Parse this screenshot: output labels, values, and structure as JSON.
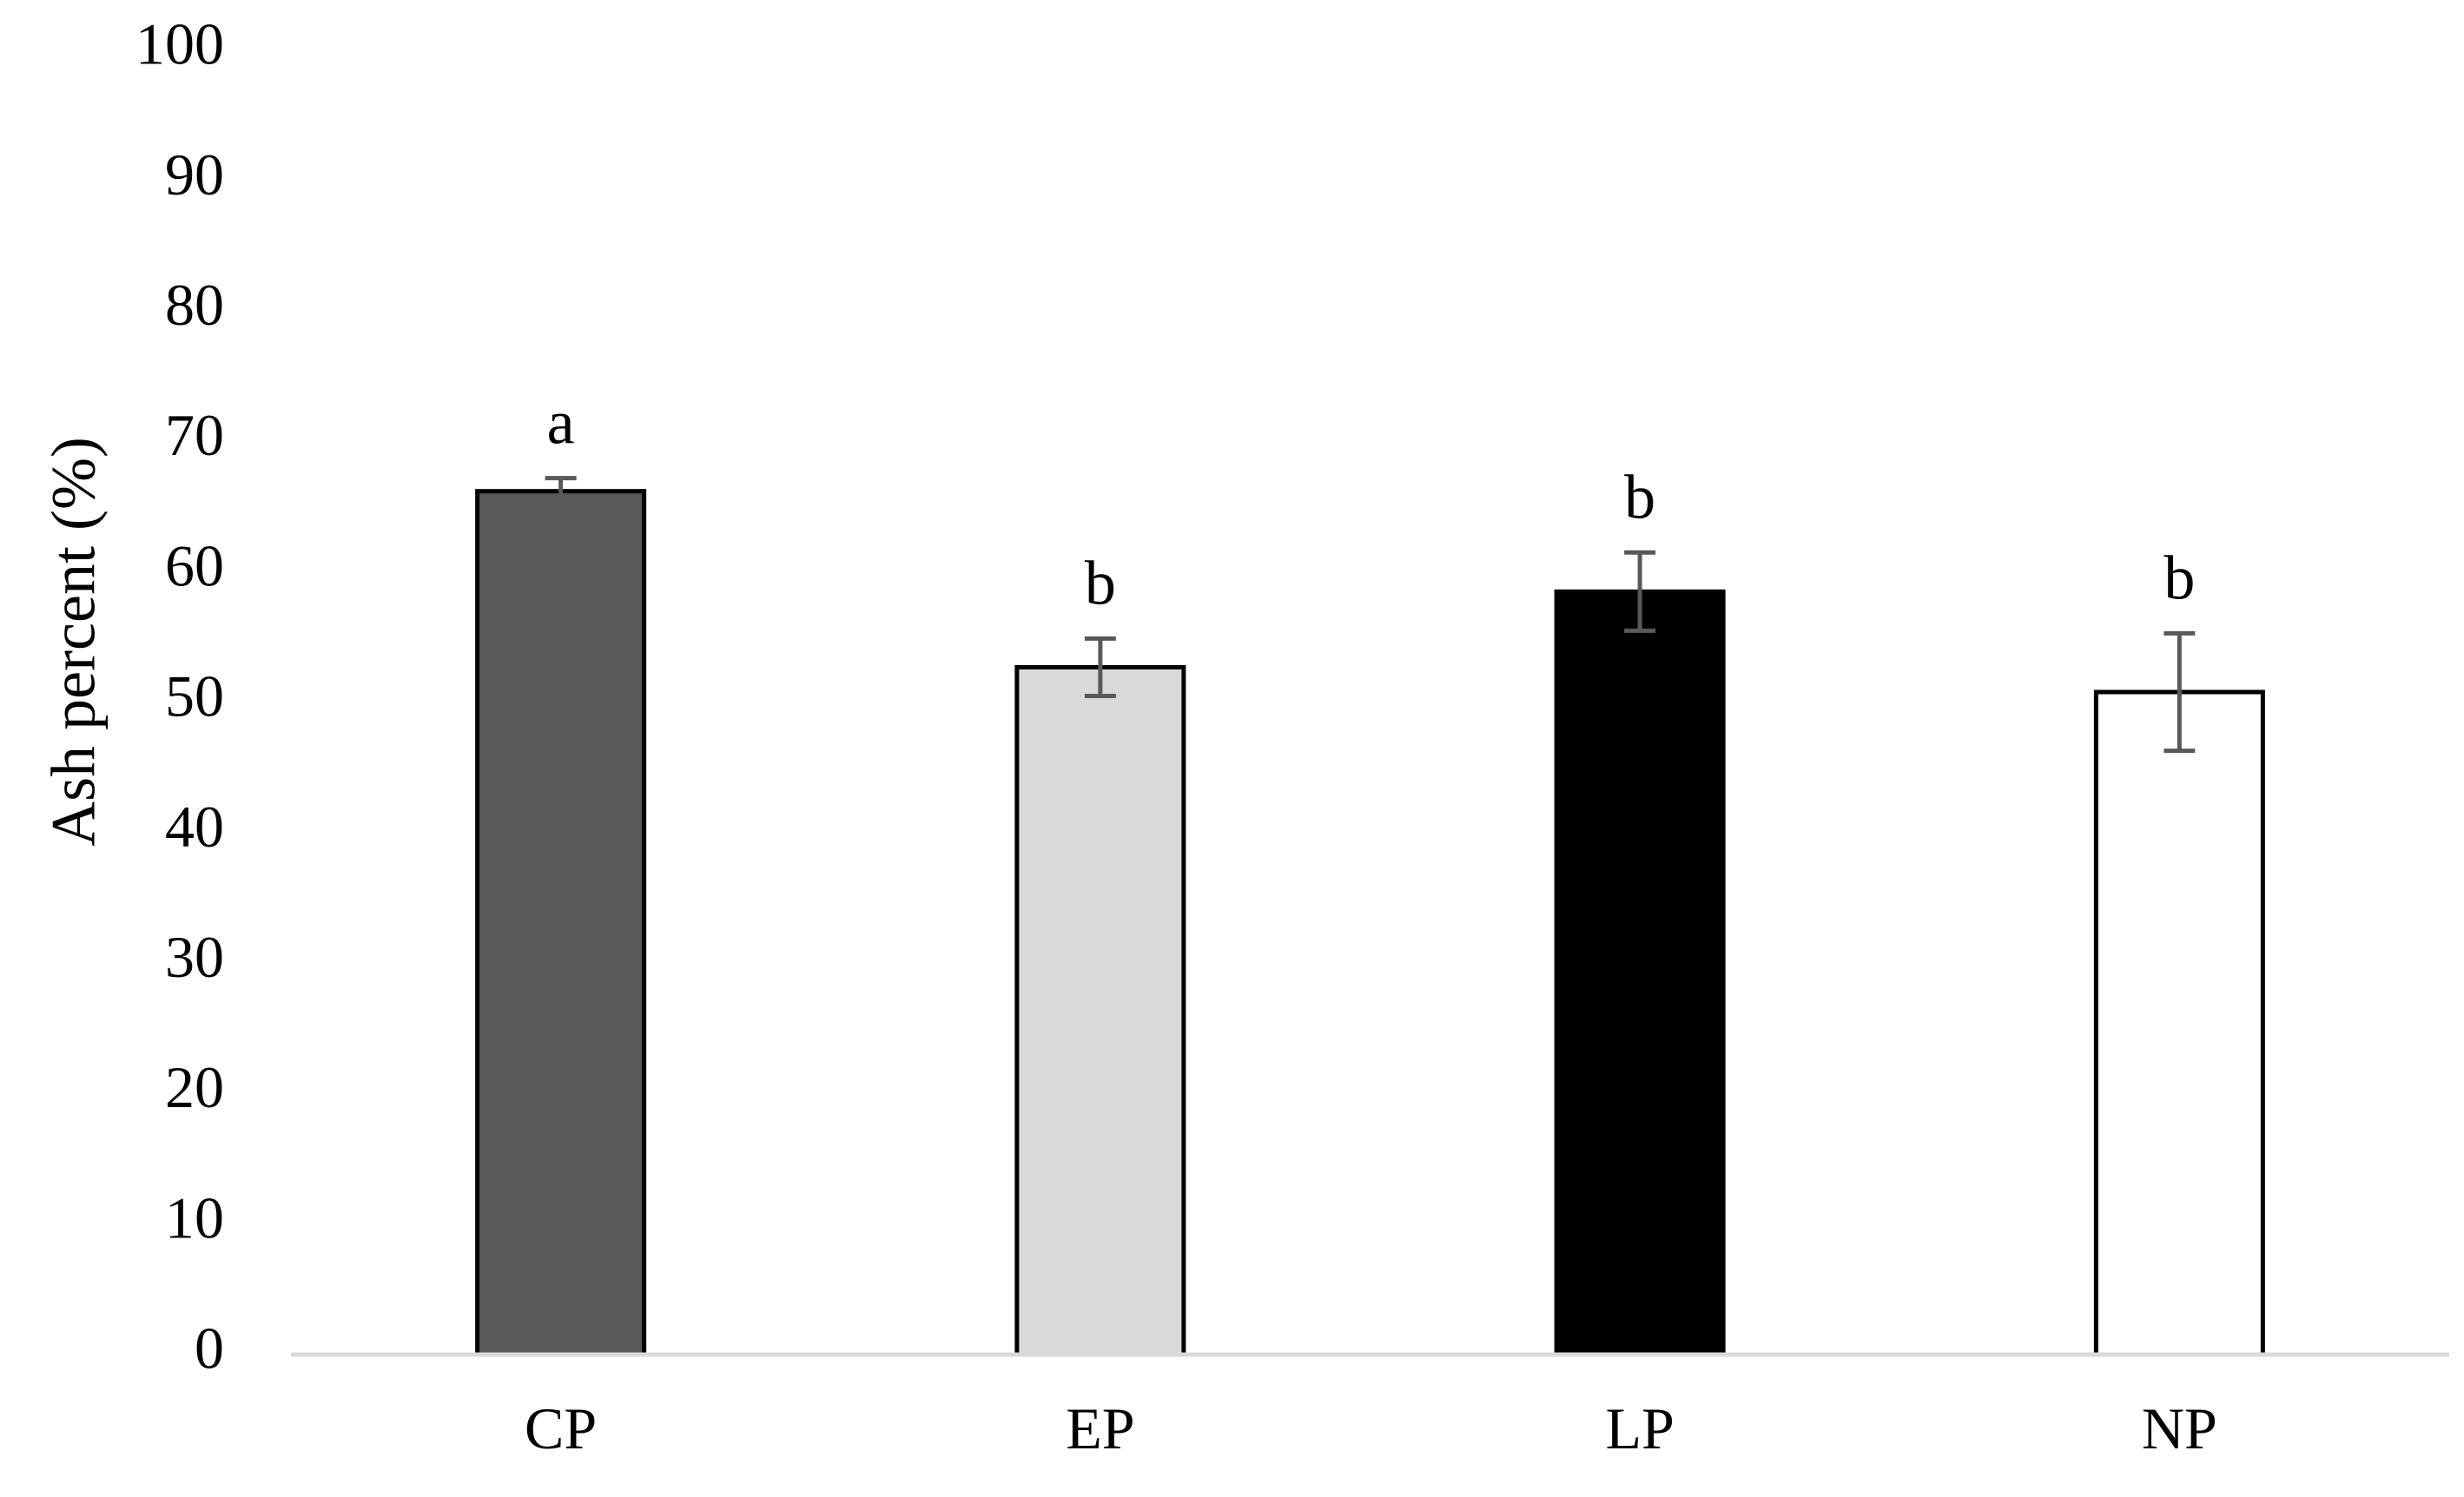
{
  "chart_data": {
    "type": "bar",
    "title": "",
    "xlabel": "",
    "ylabel": "Ash percent (%)",
    "ylim": [
      0,
      100
    ],
    "yticks": [
      0,
      10,
      20,
      30,
      40,
      50,
      60,
      70,
      80,
      90,
      100
    ],
    "grid": false,
    "legend": "none",
    "categories": [
      "CP",
      "EP",
      "LP",
      "NP"
    ],
    "values": [
      66.2,
      52.7,
      58.5,
      50.8
    ],
    "errors": [
      1.0,
      2.2,
      3.0,
      4.5
    ],
    "significance": [
      "a",
      "b",
      "b",
      "b"
    ],
    "bar_colors": [
      "#595959",
      "#d9d9d9",
      "#000000",
      "#ffffff"
    ],
    "bar_edge_color": "#000000",
    "error_bar_color": "#595959",
    "axis_line_color": "#d9d9d9"
  }
}
